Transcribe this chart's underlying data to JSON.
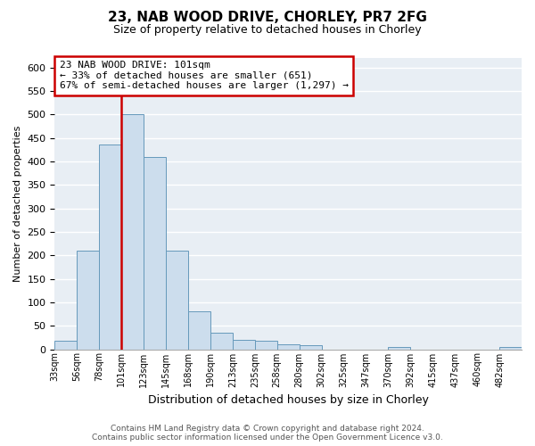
{
  "title": "23, NAB WOOD DRIVE, CHORLEY, PR7 2FG",
  "subtitle": "Size of property relative to detached houses in Chorley",
  "xlabel": "Distribution of detached houses by size in Chorley",
  "ylabel": "Number of detached properties",
  "bar_color": "#ccdded",
  "bar_edge_color": "#6699bb",
  "bin_labels": [
    "33sqm",
    "56sqm",
    "78sqm",
    "101sqm",
    "123sqm",
    "145sqm",
    "168sqm",
    "190sqm",
    "213sqm",
    "235sqm",
    "258sqm",
    "280sqm",
    "302sqm",
    "325sqm",
    "347sqm",
    "370sqm",
    "392sqm",
    "415sqm",
    "437sqm",
    "460sqm",
    "482sqm"
  ],
  "bar_heights": [
    18,
    210,
    435,
    500,
    410,
    210,
    80,
    35,
    20,
    18,
    10,
    8,
    0,
    0,
    0,
    5,
    0,
    0,
    0,
    0,
    5
  ],
  "ylim": [
    0,
    620
  ],
  "yticks": [
    0,
    50,
    100,
    150,
    200,
    250,
    300,
    350,
    400,
    450,
    500,
    550,
    600
  ],
  "annotation_line1": "23 NAB WOOD DRIVE: 101sqm",
  "annotation_line2": "← 33% of detached houses are smaller (651)",
  "annotation_line3": "67% of semi-detached houses are larger (1,297) →",
  "box_color": "#ffffff",
  "box_edge_color": "#cc0000",
  "vline_color": "#cc0000",
  "footer1": "Contains HM Land Registry data © Crown copyright and database right 2024.",
  "footer2": "Contains public sector information licensed under the Open Government Licence v3.0.",
  "plot_bg_color": "#e8eef4",
  "fig_bg_color": "#ffffff",
  "grid_color": "#ffffff"
}
